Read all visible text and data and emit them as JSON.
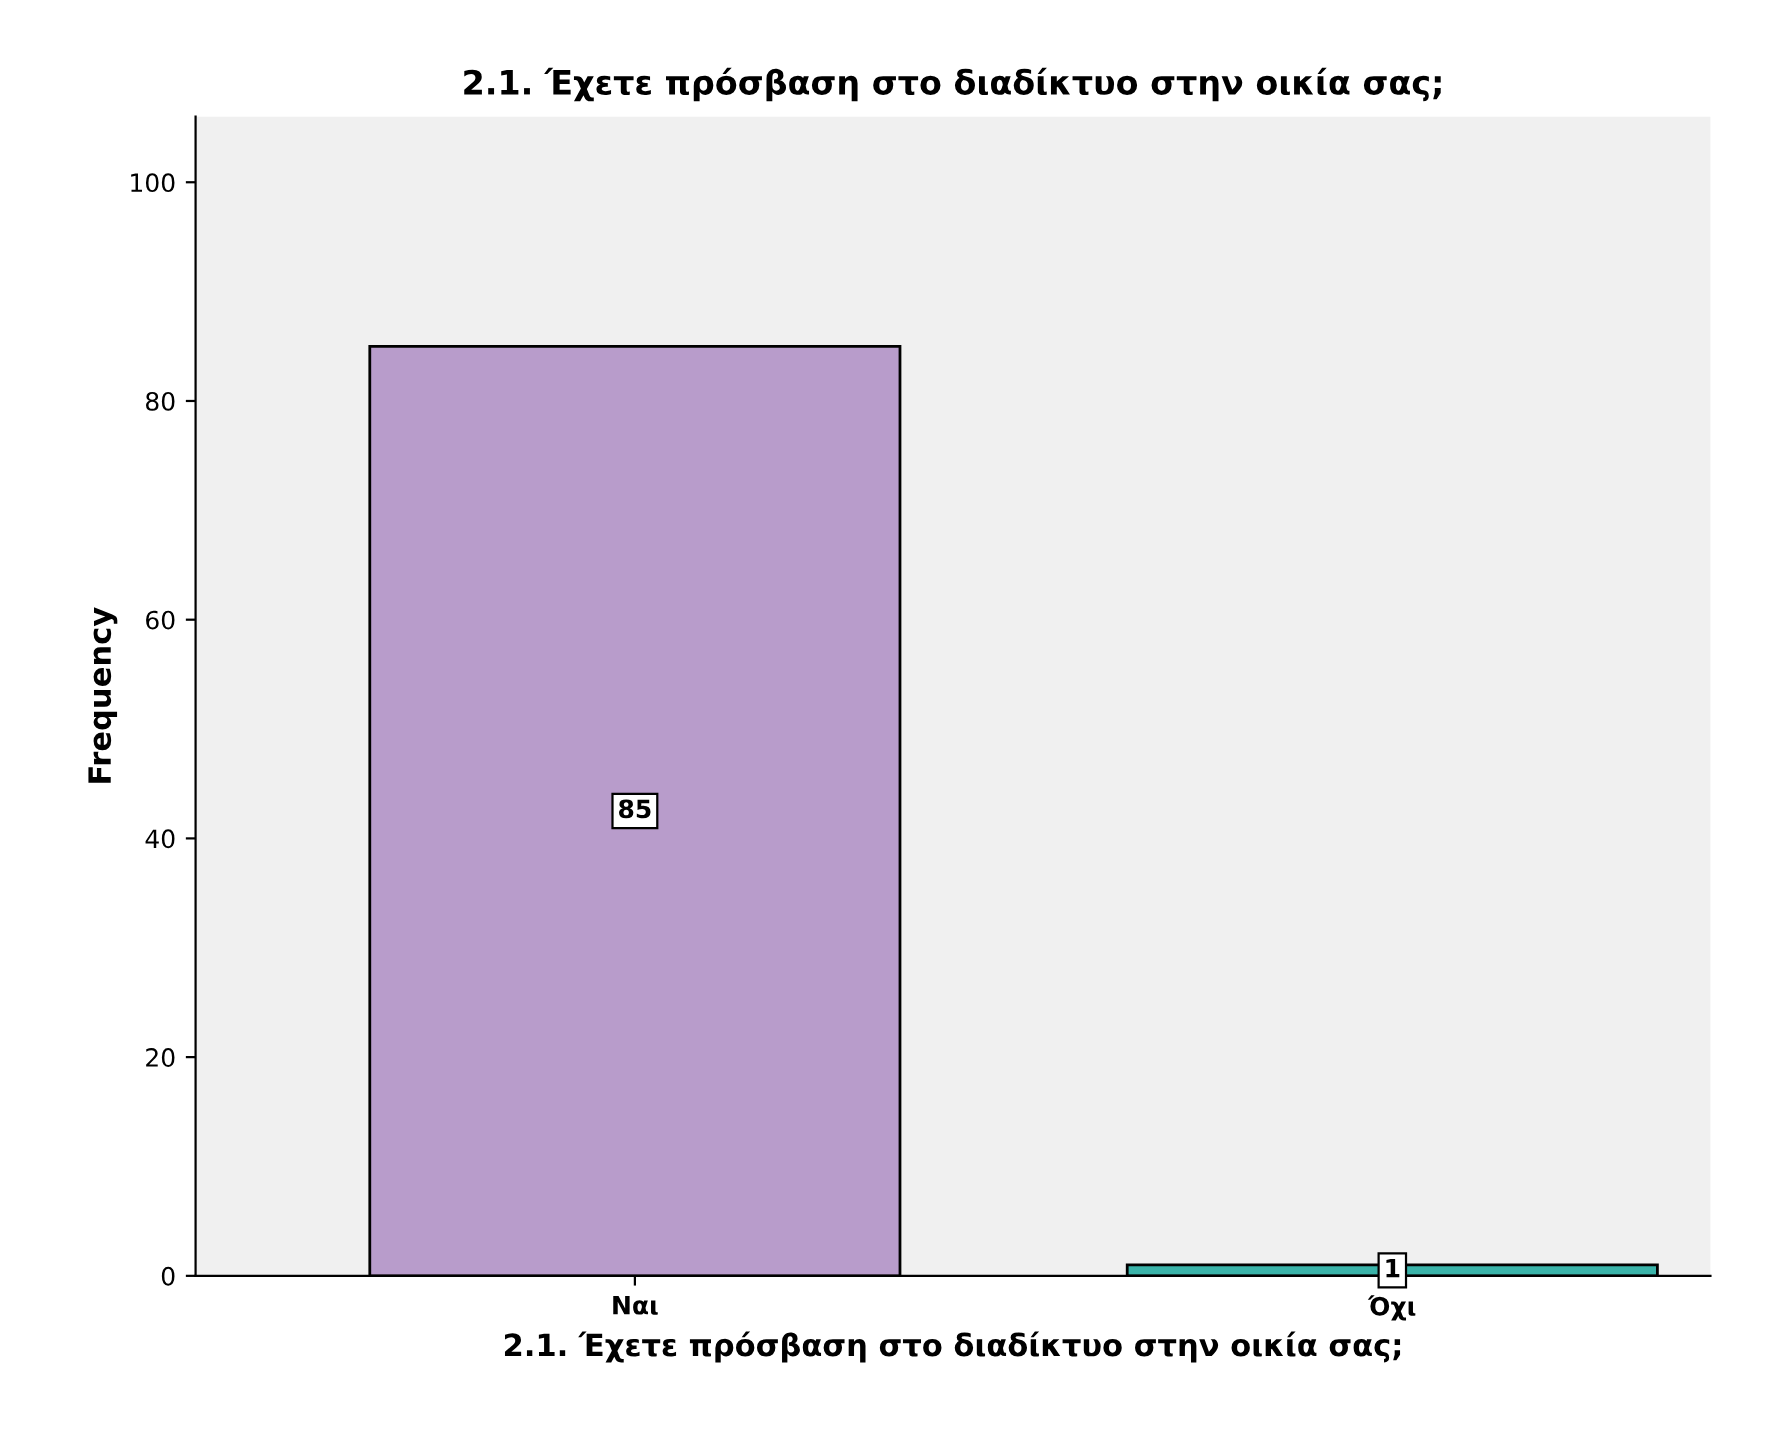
{
  "chart_data": {
    "type": "bar",
    "title": "2.1. Έχετε πρόσβαση στο διαδίκτυο στην οικία σας;",
    "xlabel": "2.1. Έχετε πρόσβαση στο διαδίκτυο στην οικία σας;",
    "ylabel": "Frequency",
    "categories": [
      "Ναι",
      "Όχι"
    ],
    "values": [
      85,
      1
    ],
    "colors": [
      "#b89ccb",
      "#3ab3a9"
    ],
    "ylim": [
      0,
      106
    ],
    "yticks": [
      0,
      20,
      40,
      60,
      80,
      100
    ],
    "data_labels": true,
    "grid": false,
    "legend": false
  }
}
